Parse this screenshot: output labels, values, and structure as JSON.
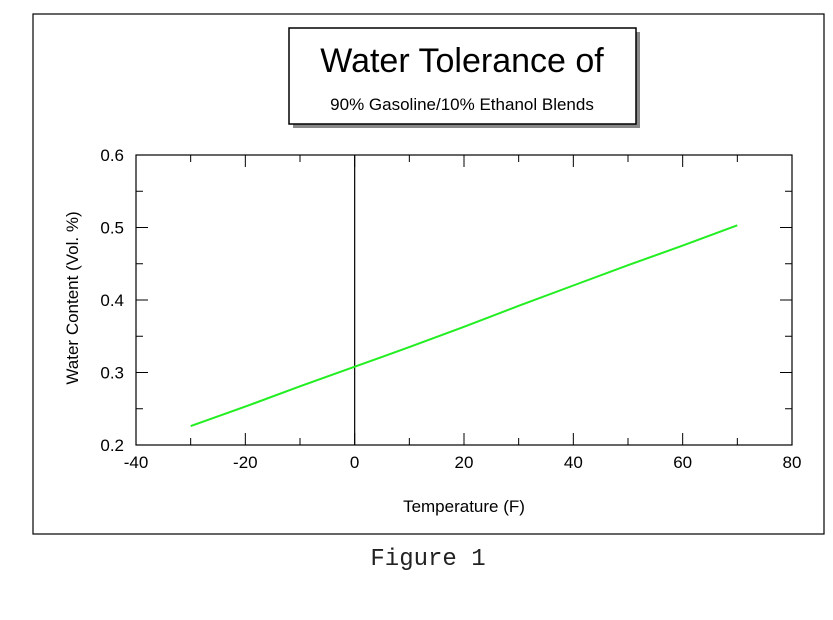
{
  "chart_data": {
    "type": "line",
    "title": "Water Tolerance of",
    "subtitle": "90% Gasoline/10% Ethanol Blends",
    "xlabel": "Temperature (F)",
    "ylabel": "Water Content (Vol. %)",
    "xlim": [
      -40,
      80
    ],
    "ylim": [
      0.2,
      0.6
    ],
    "x_ticks": [
      -40,
      -20,
      0,
      20,
      40,
      60,
      80
    ],
    "y_ticks": [
      0.2,
      0.3,
      0.4,
      0.5,
      0.6
    ],
    "x_tick_labels": [
      "-40",
      "-20",
      "0",
      "20",
      "40",
      "60",
      "80"
    ],
    "y_tick_labels": [
      "0.2",
      "0.3",
      "0.4",
      "0.5",
      "0.6"
    ],
    "grid": false,
    "reference_line_x": 0,
    "series": [
      {
        "color": "#22ee22",
        "x": [
          -30,
          -20,
          -10,
          0,
          10,
          20,
          30,
          40,
          50,
          60,
          70
        ],
        "y": [
          0.226,
          0.253,
          0.281,
          0.308,
          0.335,
          0.363,
          0.392,
          0.42,
          0.448,
          0.475,
          0.503
        ]
      }
    ]
  },
  "caption": "Figure 1"
}
